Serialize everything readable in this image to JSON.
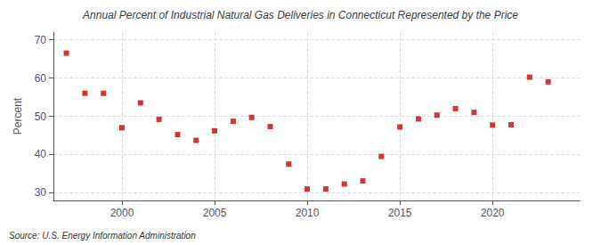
{
  "chart_data": {
    "type": "scatter",
    "title": "Annual Percent of Industrial Natural Gas Deliveries in Connecticut Represented by the Price",
    "ylabel": "Percent",
    "annotations": [
      "Source: U.S. Energy Information Administration"
    ],
    "x": [
      1997,
      1998,
      1999,
      2000,
      2001,
      2002,
      2003,
      2004,
      2005,
      2006,
      2007,
      2008,
      2009,
      2010,
      2011,
      2012,
      2013,
      2014,
      2015,
      2016,
      2017,
      2018,
      2019,
      2020,
      2021,
      2022,
      2023
    ],
    "values": [
      66.5,
      56.0,
      56.0,
      47.0,
      53.5,
      49.2,
      45.2,
      43.7,
      46.2,
      48.7,
      49.7,
      47.3,
      37.5,
      31.0,
      31.0,
      32.3,
      33.1,
      39.5,
      47.2,
      49.3,
      50.3,
      52.0,
      51.0,
      47.7,
      47.8,
      60.2,
      59.0
    ],
    "color": "#cc0000",
    "marker": "square",
    "xlim": [
      1996.3,
      2024.7
    ],
    "ylim": [
      28,
      72
    ],
    "xticks": [
      2000,
      2005,
      2010,
      2015,
      2020
    ],
    "yticks": [
      30,
      40,
      50,
      60,
      70
    ],
    "grid": true
  }
}
